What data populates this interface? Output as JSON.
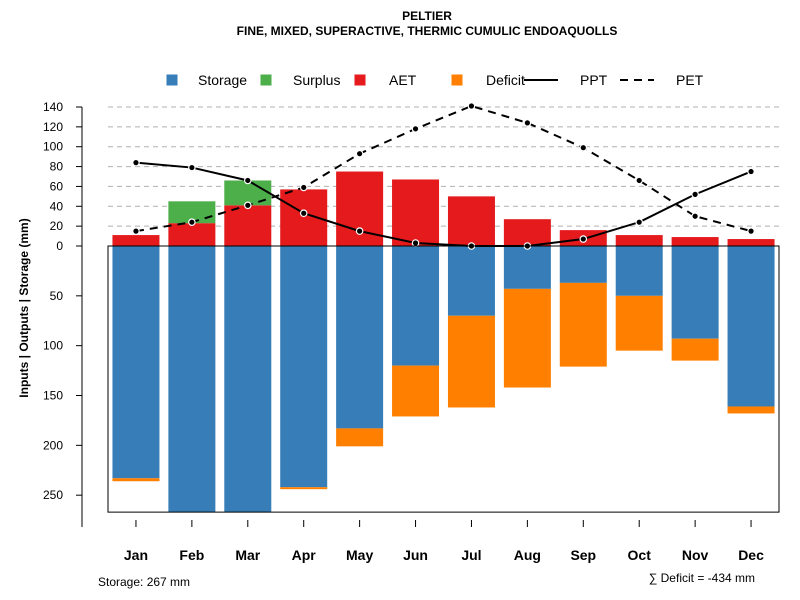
{
  "chart_data": {
    "type": "bar",
    "title": "PELTIER",
    "subtitle": "FINE, MIXED, SUPERACTIVE, THERMIC CUMULIC ENDOAQUOLLS",
    "ylabel": "Inputs | Outputs | Storage     (mm)",
    "categories": [
      "Jan",
      "Feb",
      "Mar",
      "Apr",
      "May",
      "Jun",
      "Jul",
      "Aug",
      "Sep",
      "Oct",
      "Nov",
      "Dec"
    ],
    "upper_ticks": [
      "0",
      "20",
      "40",
      "60",
      "80",
      "100",
      "120",
      "140"
    ],
    "lower_ticks": [
      "50",
      "100",
      "150",
      "200",
      "250"
    ],
    "upper_range": [
      0,
      140
    ],
    "lower_range": [
      0,
      267
    ],
    "series": [
      {
        "name": "AET",
        "color": "#E41A1C",
        "placement": "above",
        "values": [
          11,
          23,
          41,
          57,
          75,
          67,
          50,
          27,
          16,
          11,
          9,
          7
        ]
      },
      {
        "name": "Surplus",
        "color": "#4DAF4A",
        "placement": "above",
        "values": [
          0,
          22,
          25,
          0,
          0,
          0,
          0,
          0,
          0,
          0,
          0,
          0
        ]
      },
      {
        "name": "Storage",
        "color": "#377EB8",
        "placement": "below",
        "values": [
          233,
          267,
          267,
          242,
          183,
          120,
          70,
          43,
          37,
          50,
          93,
          161
        ]
      },
      {
        "name": "Deficit",
        "color": "#FF7F00",
        "placement": "below",
        "values": [
          3,
          0,
          0,
          2,
          18,
          51,
          92,
          99,
          84,
          55,
          22,
          7
        ]
      },
      {
        "name": "PPT",
        "color": "#000000",
        "style": "solid",
        "values": [
          84,
          79,
          66,
          33,
          15,
          3,
          0,
          0,
          7,
          24,
          52,
          75
        ]
      },
      {
        "name": "PET",
        "color": "#000000",
        "style": "dashed",
        "values": [
          15,
          24,
          41,
          59,
          93,
          118,
          141,
          124,
          99,
          66,
          30,
          15
        ]
      }
    ],
    "legend": [
      {
        "name": "Storage",
        "kind": "box",
        "color": "#377EB8"
      },
      {
        "name": "Surplus",
        "kind": "box",
        "color": "#4DAF4A"
      },
      {
        "name": "AET",
        "kind": "box",
        "color": "#E41A1C"
      },
      {
        "name": "Deficit",
        "kind": "box",
        "color": "#FF7F00"
      },
      {
        "name": "PPT",
        "kind": "solid",
        "color": "#000000"
      },
      {
        "name": "PET",
        "kind": "dashed",
        "color": "#000000"
      }
    ],
    "legend_position": "top",
    "grid": true,
    "footer_left": "Storage: 267 mm",
    "footer_right": "∑ Deficit = -434 mm"
  }
}
